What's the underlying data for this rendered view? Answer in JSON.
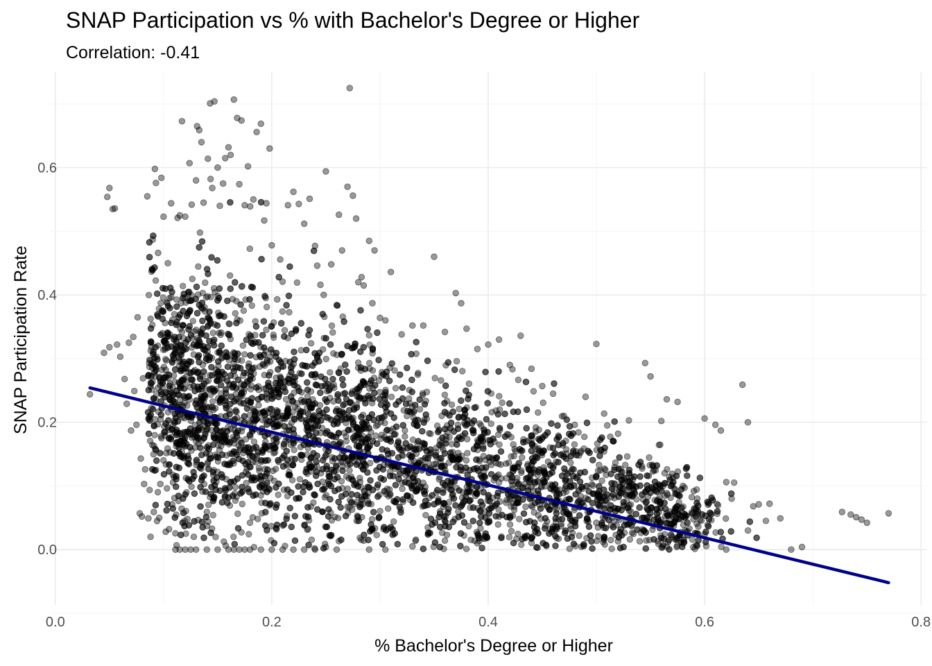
{
  "chart_data": {
    "type": "scatter",
    "title": "SNAP Participation vs % with Bachelor's Degree or Higher",
    "subtitle": "Correlation: -0.41",
    "xlabel": "% Bachelor's Degree or Higher",
    "ylabel": "SNAP Participation Rate",
    "xlim": [
      -0.005,
      0.805
    ],
    "ylim": [
      -0.087,
      0.75
    ],
    "x_ticks": [
      {
        "value": 0.0,
        "label": "0.0"
      },
      {
        "value": 0.2,
        "label": "0.2"
      },
      {
        "value": 0.4,
        "label": "0.4"
      },
      {
        "value": 0.6,
        "label": "0.6"
      },
      {
        "value": 0.8,
        "label": "0.8"
      }
    ],
    "y_ticks": [
      {
        "value": 0.0,
        "label": "0.0"
      },
      {
        "value": 0.2,
        "label": "0.2"
      },
      {
        "value": 0.4,
        "label": "0.4"
      },
      {
        "value": 0.6,
        "label": "0.6"
      }
    ],
    "grid": true,
    "point_color": "#000000",
    "point_opacity": 0.4,
    "trend_color": "#00008b",
    "trend_line": {
      "x": [
        0.032,
        0.77
      ],
      "y": [
        0.254,
        -0.052
      ]
    },
    "points": [
      [
        0.032,
        0.244
      ],
      [
        0.045,
        0.309
      ],
      [
        0.048,
        0.554
      ],
      [
        0.05,
        0.318
      ],
      [
        0.05,
        0.568
      ],
      [
        0.053,
        0.535
      ],
      [
        0.055,
        0.536
      ],
      [
        0.057,
        0.322
      ],
      [
        0.06,
        0.303
      ],
      [
        0.064,
        0.268
      ],
      [
        0.066,
        0.229
      ],
      [
        0.068,
        0.325
      ],
      [
        0.07,
        0.187
      ],
      [
        0.072,
        0.334
      ],
      [
        0.073,
        0.249
      ],
      [
        0.075,
        0.196
      ],
      [
        0.076,
        0.365
      ],
      [
        0.078,
        0.057
      ],
      [
        0.079,
        0.143
      ],
      [
        0.08,
        0.052
      ],
      [
        0.081,
        0.269
      ],
      [
        0.082,
        0.103
      ],
      [
        0.083,
        0.126
      ],
      [
        0.085,
        0.555
      ],
      [
        0.086,
        0.049
      ],
      [
        0.087,
        0.287
      ],
      [
        0.088,
        0.02
      ],
      [
        0.09,
        0.487
      ],
      [
        0.091,
        0.059
      ],
      [
        0.092,
        0.598
      ],
      [
        0.093,
        0.576
      ],
      [
        0.094,
        0.045
      ],
      [
        0.095,
        0.466
      ],
      [
        0.096,
        0.05
      ],
      [
        0.097,
        0.103
      ],
      [
        0.098,
        0.584
      ],
      [
        0.099,
        0.34
      ],
      [
        0.1,
        0.523
      ],
      [
        0.102,
        0.028
      ],
      [
        0.104,
        0.45
      ],
      [
        0.105,
        0.032
      ],
      [
        0.107,
        0.544
      ],
      [
        0.108,
        0.071
      ],
      [
        0.11,
        0.081
      ],
      [
        0.111,
        0.0
      ],
      [
        0.113,
        0.521
      ],
      [
        0.115,
        0.525
      ],
      [
        0.117,
        0.673
      ],
      [
        0.12,
        0.523
      ],
      [
        0.122,
        0.048
      ],
      [
        0.124,
        0.607
      ],
      [
        0.126,
        0.542
      ],
      [
        0.128,
        0.02
      ],
      [
        0.13,
        0.58
      ],
      [
        0.131,
        0.665
      ],
      [
        0.133,
        0.659
      ],
      [
        0.135,
        0.64
      ],
      [
        0.137,
        0.545
      ],
      [
        0.14,
        0.059
      ],
      [
        0.141,
        0.614
      ],
      [
        0.143,
        0.701
      ],
      [
        0.145,
        0.568
      ],
      [
        0.147,
        0.704
      ],
      [
        0.15,
        0.6
      ],
      [
        0.152,
        0.54
      ],
      [
        0.155,
        0.575
      ],
      [
        0.157,
        0.615
      ],
      [
        0.16,
        0.632
      ],
      [
        0.162,
        0.62
      ],
      [
        0.165,
        0.707
      ],
      [
        0.168,
        0.678
      ],
      [
        0.17,
        0.574
      ],
      [
        0.172,
        0.674
      ],
      [
        0.175,
        0.541
      ],
      [
        0.178,
        0.602
      ],
      [
        0.18,
        0.539
      ],
      [
        0.183,
        0.55
      ],
      [
        0.186,
        0.656
      ],
      [
        0.19,
        0.669
      ],
      [
        0.193,
        0.517
      ],
      [
        0.195,
        0.544
      ],
      [
        0.198,
        0.63
      ],
      [
        0.2,
        0.478
      ],
      [
        0.205,
        0.393
      ],
      [
        0.21,
        0.421
      ],
      [
        0.215,
        0.541
      ],
      [
        0.22,
        0.562
      ],
      [
        0.225,
        0.543
      ],
      [
        0.23,
        0.512
      ],
      [
        0.235,
        0.551
      ],
      [
        0.24,
        0.477
      ],
      [
        0.242,
        0.446
      ],
      [
        0.245,
        0.416
      ],
      [
        0.248,
        0.4
      ],
      [
        0.25,
        0.594
      ],
      [
        0.255,
        0.448
      ],
      [
        0.26,
        0.384
      ],
      [
        0.262,
        0.526
      ],
      [
        0.265,
        0.47
      ],
      [
        0.27,
        0.57
      ],
      [
        0.272,
        0.725
      ],
      [
        0.275,
        0.556
      ],
      [
        0.278,
        0.52
      ],
      [
        0.28,
        0.42
      ],
      [
        0.283,
        0.428
      ],
      [
        0.285,
        0.415
      ],
      [
        0.29,
        0.485
      ],
      [
        0.293,
        0.387
      ],
      [
        0.295,
        0.47
      ],
      [
        0.3,
        0.364
      ],
      [
        0.305,
        0.36
      ],
      [
        0.31,
        0.436
      ],
      [
        0.32,
        0.338
      ],
      [
        0.33,
        0.352
      ],
      [
        0.34,
        0.352
      ],
      [
        0.35,
        0.46
      ],
      [
        0.36,
        0.342
      ],
      [
        0.37,
        0.403
      ],
      [
        0.375,
        0.387
      ],
      [
        0.38,
        0.347
      ],
      [
        0.39,
        0.315
      ],
      [
        0.4,
        0.322
      ],
      [
        0.41,
        0.33
      ],
      [
        0.42,
        0.29
      ],
      [
        0.43,
        0.336
      ],
      [
        0.44,
        0.284
      ],
      [
        0.45,
        0.257
      ],
      [
        0.46,
        0.245
      ],
      [
        0.47,
        0.21
      ],
      [
        0.48,
        0.196
      ],
      [
        0.49,
        0.24
      ],
      [
        0.5,
        0.323
      ],
      [
        0.51,
        0.195
      ],
      [
        0.52,
        0.182
      ],
      [
        0.53,
        0.203
      ],
      [
        0.545,
        0.293
      ],
      [
        0.55,
        0.272
      ],
      [
        0.56,
        0.202
      ],
      [
        0.565,
        0.236
      ],
      [
        0.57,
        0.119
      ],
      [
        0.575,
        0.232
      ],
      [
        0.58,
        0.1
      ],
      [
        0.59,
        0.092
      ],
      [
        0.6,
        0.206
      ],
      [
        0.61,
        0.196
      ],
      [
        0.615,
        0.187
      ],
      [
        0.62,
        0.106
      ],
      [
        0.625,
        0.08
      ],
      [
        0.635,
        0.259
      ],
      [
        0.64,
        0.2
      ],
      [
        0.645,
        0.068
      ],
      [
        0.65,
        0.071
      ],
      [
        0.66,
        0.072
      ],
      [
        0.67,
        0.049
      ],
      [
        0.68,
        0.0
      ],
      [
        0.69,
        0.004
      ],
      [
        0.727,
        0.059
      ],
      [
        0.735,
        0.055
      ],
      [
        0.74,
        0.051
      ],
      [
        0.745,
        0.047
      ],
      [
        0.75,
        0.042
      ],
      [
        0.77,
        0.057
      ],
      [
        0.62,
        0.0
      ],
      [
        0.6,
        0.024
      ],
      [
        0.57,
        0.04
      ],
      [
        0.54,
        0.013
      ],
      [
        0.52,
        0.013
      ],
      [
        0.5,
        0.042
      ],
      [
        0.48,
        0.066
      ],
      [
        0.46,
        0.036
      ],
      [
        0.44,
        0.081
      ],
      [
        0.42,
        0.052
      ],
      [
        0.39,
        0.01
      ],
      [
        0.36,
        0.014
      ],
      [
        0.33,
        0.005
      ],
      [
        0.305,
        0.0
      ],
      [
        0.29,
        0.0
      ],
      [
        0.285,
        0.014
      ],
      [
        0.26,
        0.0
      ],
      [
        0.25,
        0.004
      ],
      [
        0.24,
        0.0
      ],
      [
        0.23,
        0.0
      ],
      [
        0.22,
        0.0
      ],
      [
        0.21,
        0.0
      ],
      [
        0.2,
        0.0
      ],
      [
        0.19,
        0.0
      ],
      [
        0.18,
        0.0
      ],
      [
        0.175,
        0.0
      ],
      [
        0.17,
        0.0
      ],
      [
        0.165,
        0.0
      ],
      [
        0.16,
        0.0
      ],
      [
        0.15,
        0.0
      ],
      [
        0.14,
        0.0
      ],
      [
        0.13,
        0.0
      ],
      [
        0.125,
        0.0
      ],
      [
        0.12,
        0.0
      ],
      [
        0.115,
        0.0
      ]
    ]
  }
}
